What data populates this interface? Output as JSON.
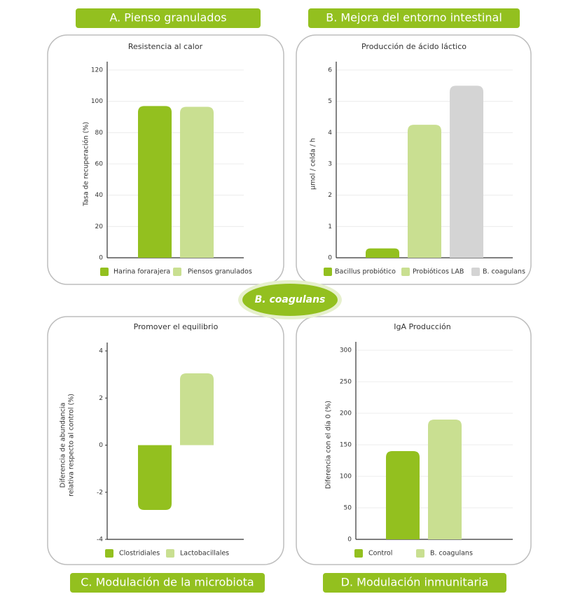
{
  "sections": [
    "A. Pienso granulados",
    "B. Mejora del entorno intestinal",
    "C. Modulación de la microbiota",
    "D. Modulación inmunitaria"
  ],
  "center_label": "B. coagulans",
  "chart_data": [
    {
      "type": "bar",
      "title": "Resistencia al calor",
      "ylabel": [
        "Tasa de recuperación (%)"
      ],
      "ylim": [
        0,
        120
      ],
      "yticks": [
        0,
        20,
        40,
        60,
        80,
        100,
        120
      ],
      "grid": true,
      "series": [
        {
          "name": "Harina forarajera",
          "color": "#93c01f",
          "values": [
            97
          ]
        },
        {
          "name": "Piensos granulados",
          "color": "#c9df91",
          "values": [
            96.5
          ]
        }
      ]
    },
    {
      "type": "bar",
      "title": "Producción de ácido láctico",
      "ylabel": [
        "µmol / celda / h"
      ],
      "ylim": [
        0,
        6
      ],
      "yticks": [
        0,
        1,
        2,
        3,
        4,
        5,
        6
      ],
      "grid": true,
      "series": [
        {
          "name": "Bacillus probiótico",
          "color": "#93c01f",
          "values": [
            0.3
          ]
        },
        {
          "name": "Probióticos LAB",
          "color": "#c9df91",
          "values": [
            4.25
          ]
        },
        {
          "name": "B. coagulans",
          "color": "#d4d4d4",
          "values": [
            5.5
          ]
        }
      ]
    },
    {
      "type": "bar",
      "title": "Promover el equilibrio",
      "ylabel": [
        "Diferencia de abundancia",
        "relativa respecto al control (%)"
      ],
      "ylim": [
        -4,
        4
      ],
      "yticks": [
        -4,
        -2,
        0,
        2,
        4
      ],
      "grid": false,
      "series": [
        {
          "name": "Clostridiales",
          "color": "#93c01f",
          "values": [
            -2.75
          ]
        },
        {
          "name": "Lactobacillales",
          "color": "#c9df91",
          "values": [
            3.05
          ]
        }
      ]
    },
    {
      "type": "bar",
      "title": "IgA Producción",
      "ylabel": [
        "Diferencia con el día 0 (%)"
      ],
      "ylim": [
        0,
        300
      ],
      "yticks": [
        0,
        50,
        100,
        150,
        200,
        250,
        300
      ],
      "grid": true,
      "series": [
        {
          "name": "Control",
          "color": "#93c01f",
          "values": [
            140
          ]
        },
        {
          "name": "B. coagulans",
          "color": "#c9df91",
          "values": [
            190
          ]
        }
      ]
    }
  ]
}
